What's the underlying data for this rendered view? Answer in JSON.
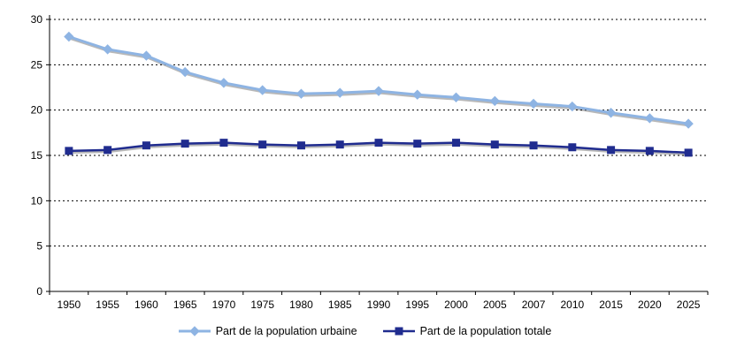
{
  "chart_data": {
    "type": "line",
    "title": "",
    "xlabel": "",
    "ylabel": "",
    "ylim": [
      0,
      30
    ],
    "ytick_step": 5,
    "grid": "dashed-horizontal",
    "legend_position": "bottom",
    "categories": [
      "1950",
      "1955",
      "1960",
      "1965",
      "1970",
      "1975",
      "1980",
      "1985",
      "1990",
      "1995",
      "2000",
      "2005",
      "2007",
      "2010",
      "2015",
      "2020",
      "2025"
    ],
    "series": [
      {
        "name": "Part de la population urbaine",
        "marker": "diamond",
        "color": "#8EB4E3",
        "values": [
          28.1,
          26.7,
          26.0,
          24.2,
          23.0,
          22.2,
          21.8,
          21.9,
          22.1,
          21.7,
          21.4,
          21.0,
          20.7,
          20.4,
          19.7,
          19.1,
          18.5
        ]
      },
      {
        "name": "Part de la population totale",
        "marker": "square",
        "color": "#202C8F",
        "values": [
          15.5,
          15.6,
          16.1,
          16.3,
          16.4,
          16.2,
          16.1,
          16.2,
          16.4,
          16.3,
          16.4,
          16.2,
          16.1,
          15.9,
          15.6,
          15.5,
          15.3
        ]
      }
    ]
  }
}
